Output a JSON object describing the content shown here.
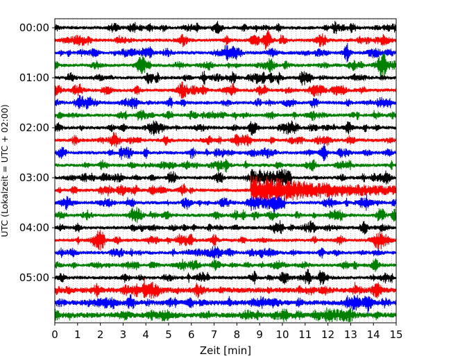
{
  "chart_data": {
    "type": "line",
    "xlabel": "Zeit  [min]",
    "ylabel": "UTC (Lokalzeit = UTC + 02:00)",
    "xlim": [
      0,
      15
    ],
    "x_ticks": [
      "0",
      "1",
      "2",
      "3",
      "4",
      "5",
      "6",
      "7",
      "8",
      "9",
      "10",
      "11",
      "12",
      "13",
      "14",
      "15"
    ],
    "y_tick_labels": [
      "00:00",
      "01:00",
      "02:00",
      "03:00",
      "04:00",
      "05:00"
    ],
    "grid": "vertical minor",
    "trace_interval_min": 15,
    "trace_count": 24,
    "trace_colors": [
      "#000000",
      "#ff0000",
      "#0000ff",
      "#008000"
    ],
    "event": {
      "trace_start": "03:15",
      "onset_min": 8.6,
      "strong_until_min": 10.1,
      "coda_until_min": 15
    }
  }
}
